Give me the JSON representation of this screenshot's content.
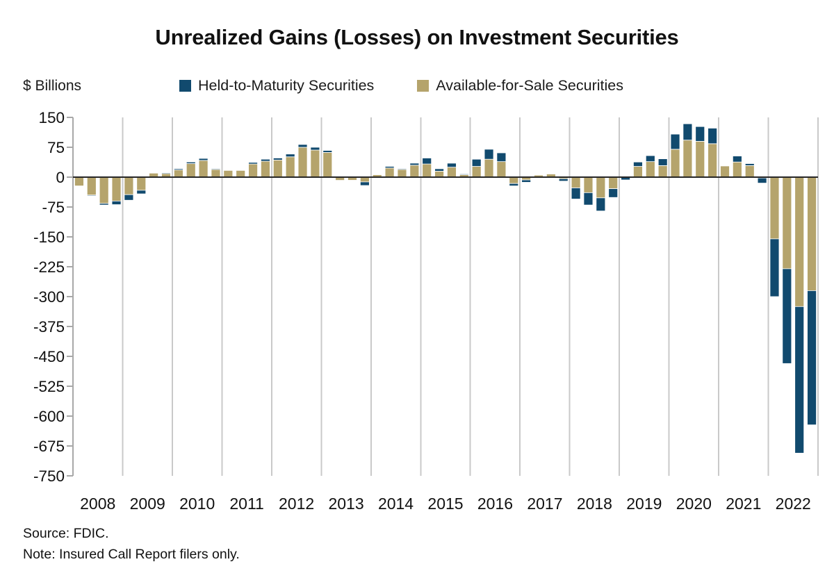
{
  "title": "Unrealized Gains (Losses) on Investment Securities",
  "y_axis_label": "$ Billions",
  "legend": [
    {
      "label": "Held-to-Maturity Securities",
      "color": "#114a6e"
    },
    {
      "label": "Available-for-Sale Securities",
      "color": "#b5a46c"
    }
  ],
  "source": "Source: FDIC.",
  "note": "Note: Insured Call Report filers only.",
  "colors": {
    "htm": "#114a6e",
    "afs": "#b5a46c",
    "year_gridline": "#c9c9c9",
    "y_axis": "#a8a8a8",
    "zero_line": "#262626",
    "text": "#111111"
  },
  "chart_data": {
    "type": "bar",
    "stacked": true,
    "title": "Unrealized Gains (Losses) on Investment Securities",
    "ylabel": "$ Billions",
    "xlabel": "",
    "ylim": [
      -750,
      150
    ],
    "y_ticks": [
      150,
      75,
      0,
      -75,
      -150,
      -225,
      -300,
      -375,
      -450,
      -525,
      -600,
      -675,
      -750
    ],
    "grid": "vertical year separators only",
    "legend_position": "top",
    "x_tick_labels": [
      "2008",
      "2009",
      "2010",
      "2011",
      "2012",
      "2013",
      "2014",
      "2015",
      "2016",
      "2017",
      "2018",
      "2019",
      "2020",
      "2021",
      "2022"
    ],
    "quarters": [
      "2008Q1",
      "2008Q2",
      "2008Q3",
      "2008Q4",
      "2009Q1",
      "2009Q2",
      "2009Q3",
      "2009Q4",
      "2010Q1",
      "2010Q2",
      "2010Q3",
      "2010Q4",
      "2011Q1",
      "2011Q2",
      "2011Q3",
      "2011Q4",
      "2012Q1",
      "2012Q2",
      "2012Q3",
      "2012Q4",
      "2013Q1",
      "2013Q2",
      "2013Q3",
      "2013Q4",
      "2014Q1",
      "2014Q2",
      "2014Q3",
      "2014Q4",
      "2015Q1",
      "2015Q2",
      "2015Q3",
      "2015Q4",
      "2016Q1",
      "2016Q2",
      "2016Q3",
      "2016Q4",
      "2017Q1",
      "2017Q2",
      "2017Q3",
      "2017Q4",
      "2018Q1",
      "2018Q2",
      "2018Q3",
      "2018Q4",
      "2019Q1",
      "2019Q2",
      "2019Q3",
      "2019Q4",
      "2020Q1",
      "2020Q2",
      "2020Q3",
      "2020Q4",
      "2021Q1",
      "2021Q2",
      "2021Q3",
      "2021Q4",
      "2022Q1",
      "2022Q2",
      "2022Q3",
      "2022Q4"
    ],
    "series": [
      {
        "name": "Available-for-Sale Securities",
        "color": "#b5a46c",
        "values": [
          -22,
          -45,
          -66,
          -60,
          -44,
          -33,
          10,
          9,
          18,
          34,
          42,
          19,
          17,
          17,
          33,
          40,
          43,
          51,
          75,
          68,
          62,
          -8,
          -8,
          -12,
          6,
          23,
          19,
          30,
          33,
          15,
          25,
          6,
          27,
          45,
          39,
          -16,
          -7,
          5,
          8,
          -4,
          -27,
          -39,
          -52,
          -29,
          -1,
          27,
          39,
          29,
          70,
          93,
          90,
          84,
          28,
          38,
          29,
          -2,
          -155,
          -230,
          -325,
          -285
        ]
      },
      {
        "name": "Held-to-Maturity Securities",
        "color": "#114a6e",
        "values": [
          0,
          -2,
          -4,
          -9,
          -14,
          -9,
          0,
          2,
          3,
          4,
          5,
          2,
          1,
          1,
          4,
          5,
          5,
          7,
          7,
          7,
          5,
          0,
          -1,
          -9,
          0,
          4,
          2,
          5,
          15,
          6,
          10,
          2,
          18,
          25,
          22,
          -6,
          -6,
          0,
          1,
          -6,
          -28,
          -31,
          -33,
          -22,
          -6,
          11,
          15,
          17,
          38,
          41,
          37,
          39,
          0,
          15,
          5,
          -13,
          -145,
          -238,
          -368,
          -337
        ]
      }
    ]
  }
}
